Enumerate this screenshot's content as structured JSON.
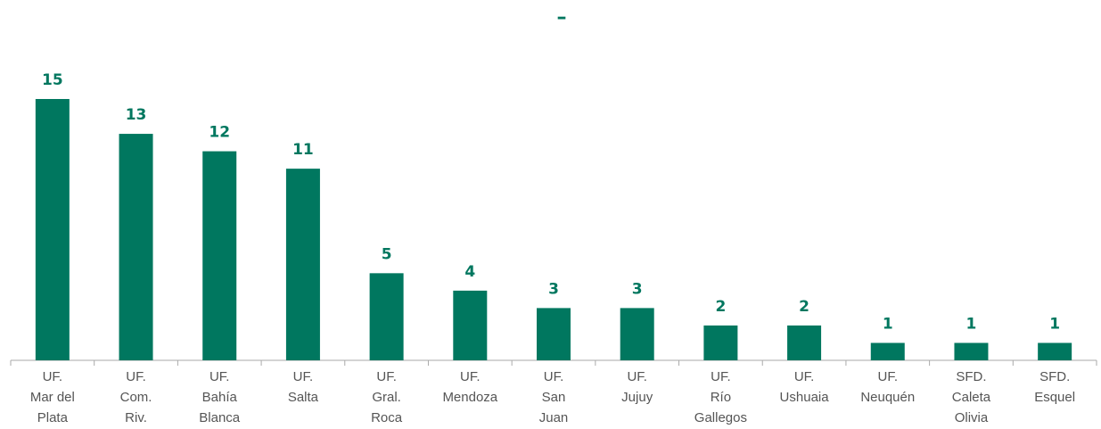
{
  "chart_data": {
    "type": "bar",
    "title": "–",
    "categories": [
      "UF.\nMar del\nPlata",
      "UF.\nCom.\nRiv.",
      "UF.\nBahía\nBlanca",
      "UF.\nSalta",
      "UF.\nGral.\nRoca",
      "UF.\nMendoza",
      "UF.\nSan\nJuan",
      "UF.\nJujuy",
      "UF.\nRío\nGallegos",
      "UF.\nUshuaia",
      "UF.\nNeuquén",
      "SFD.\nCaleta\nOlivia",
      "SFD.\nEsquel"
    ],
    "values": [
      15,
      13,
      12,
      11,
      5,
      4,
      3,
      3,
      2,
      2,
      1,
      1,
      1
    ],
    "color": "#00775f",
    "ylim": [
      0,
      15
    ]
  }
}
